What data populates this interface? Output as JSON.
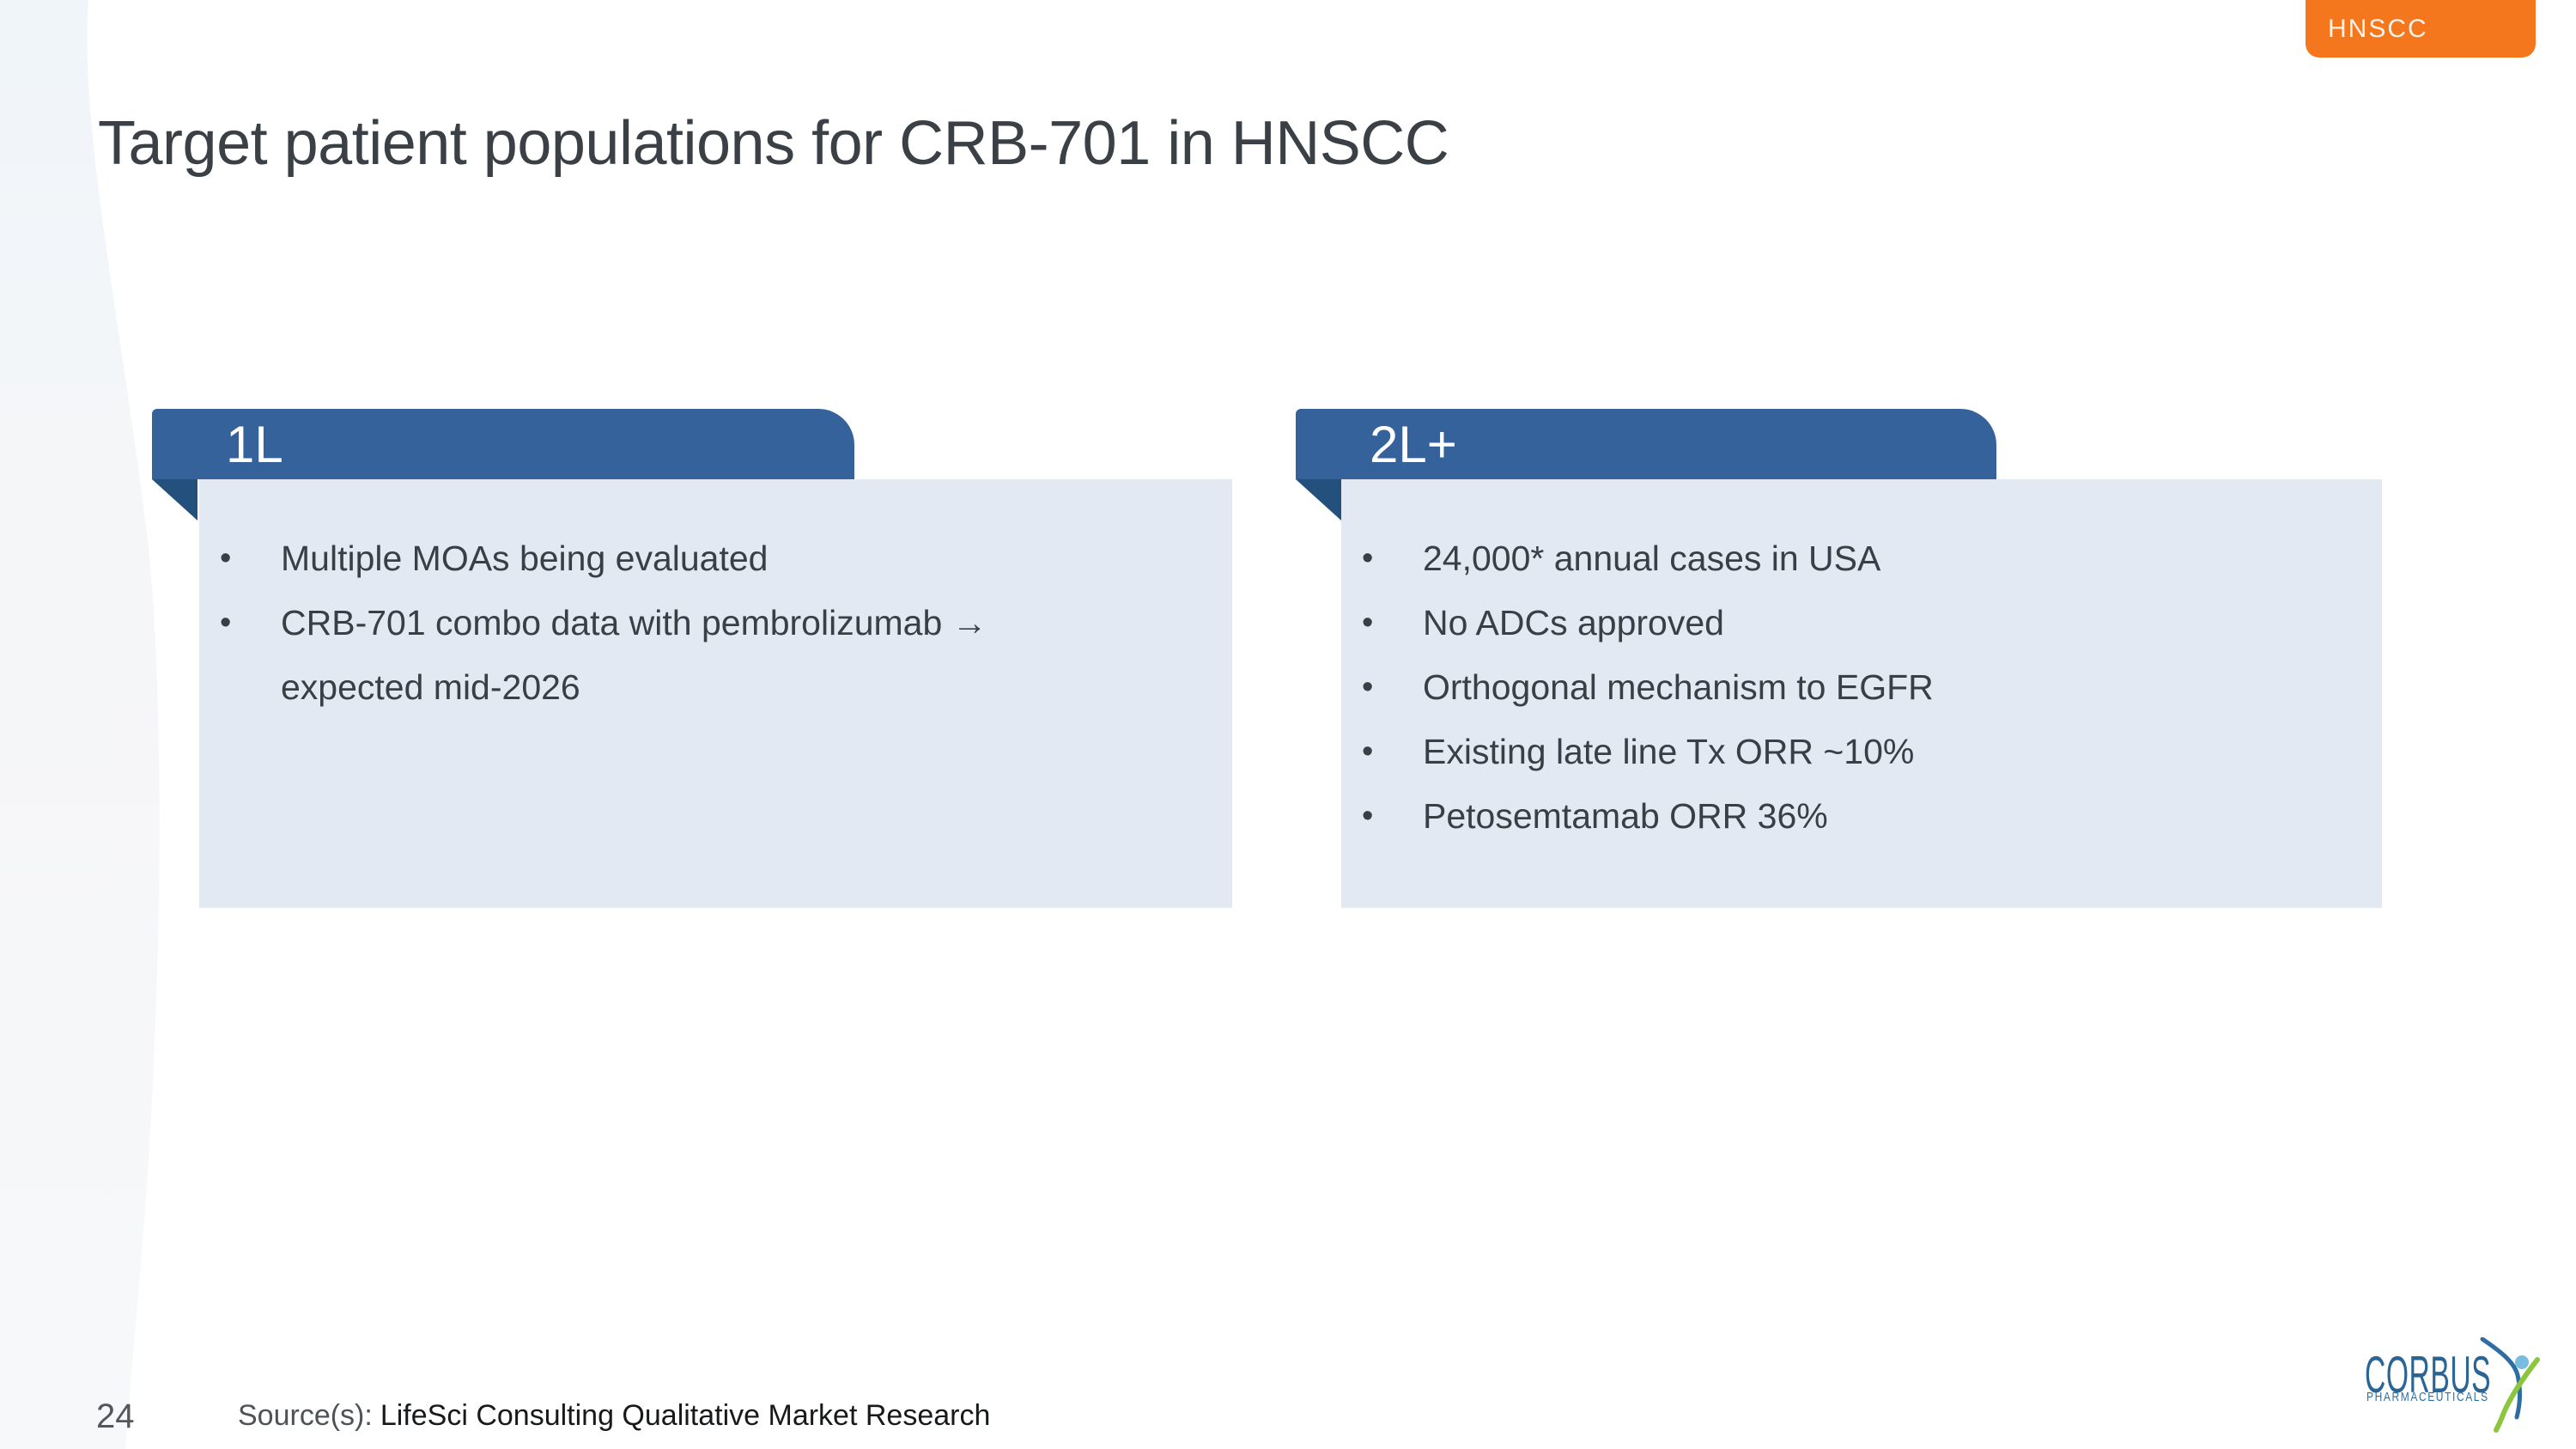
{
  "badge": {
    "label": "HNSCC",
    "color": "#F4761D"
  },
  "title": "Target patient populations for CRB-701 in HNSCC",
  "panels": [
    {
      "tab_label": "1L",
      "bullets": [
        "Multiple MOAs being evaluated",
        "CRB-701 combo data with pembrolizumab →\nexpected mid-2026"
      ]
    },
    {
      "tab_label": "2L+",
      "bullets": [
        "24,000* annual cases in USA",
        "No ADCs approved",
        "Orthogonal mechanism to EGFR",
        "Existing late line Tx ORR ~10%",
        "Petosemtamab ORR 36%"
      ]
    }
  ],
  "footer": {
    "page_number": "24",
    "source_label": "Source(s):",
    "source_text": "LifeSci Consulting Qualitative Market Research"
  },
  "logo": {
    "name": "CORBUS",
    "subtext": "PHARMACEUTICALS"
  },
  "colors": {
    "tab_blue": "#35629A",
    "fold_navy": "#24507E",
    "card_background": "#E3E9F3",
    "badge_orange": "#F4761D",
    "body_text": "#393F44",
    "logo_blue": "#2A6596",
    "logo_green": "#8CC63E",
    "logo_head_blue": "#78BCE0"
  }
}
